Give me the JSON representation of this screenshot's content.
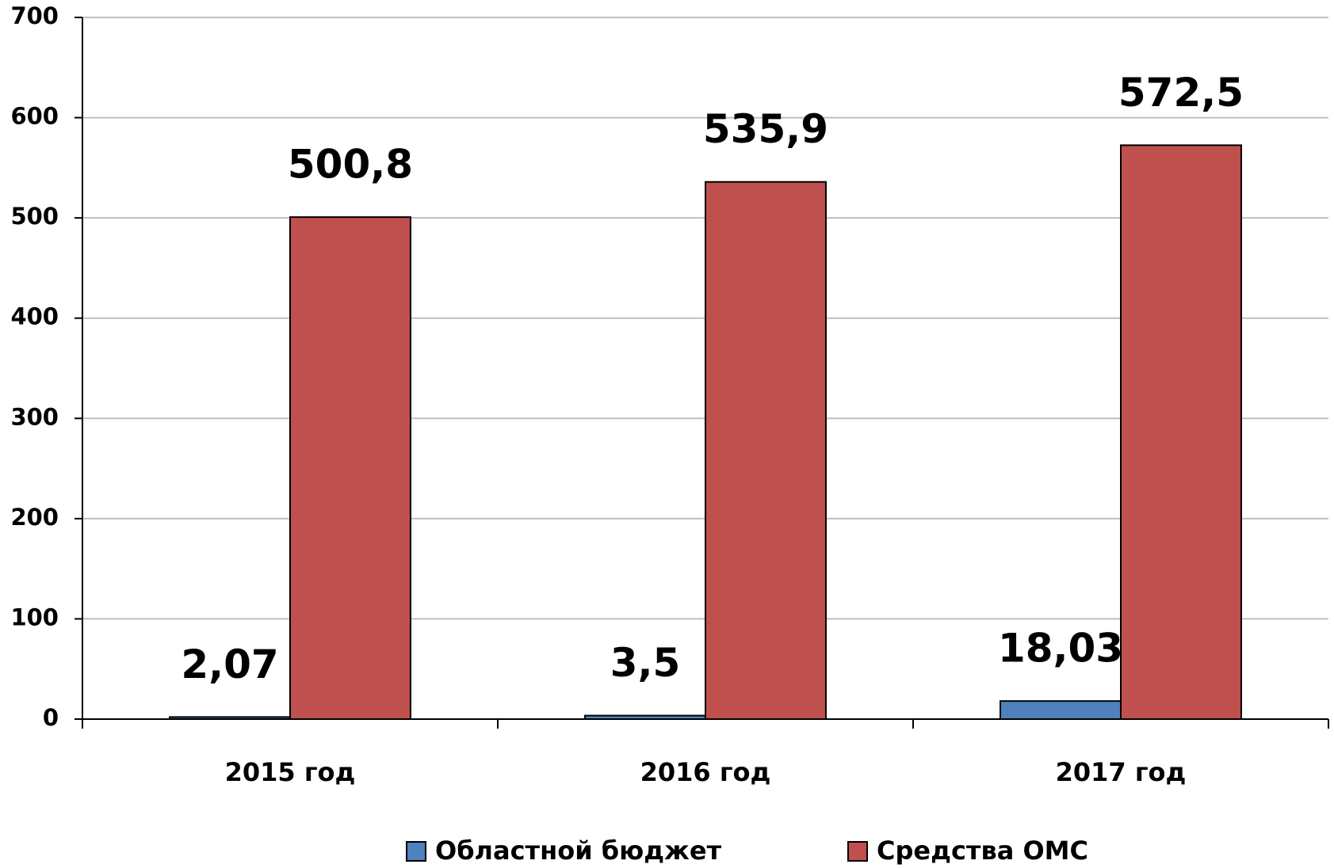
{
  "chart_data": {
    "type": "bar",
    "categories": [
      "2015 год",
      "2016 год",
      "2017 год"
    ],
    "series": [
      {
        "name": "Областной бюджет",
        "color": "#4f81bd",
        "values": [
          2.07,
          3.5,
          18.03
        ],
        "value_labels": [
          "2,07",
          "3,5",
          "18,03"
        ]
      },
      {
        "name": "Средства ОМС",
        "color": "#c0504d",
        "values": [
          500.8,
          535.9,
          572.5
        ],
        "value_labels": [
          "500,8",
          "535,9",
          "572,5"
        ]
      }
    ],
    "ylim": [
      0,
      700
    ],
    "yticks": [
      0,
      100,
      200,
      300,
      400,
      500,
      600,
      700
    ],
    "grid": true,
    "legend": "bottom"
  }
}
